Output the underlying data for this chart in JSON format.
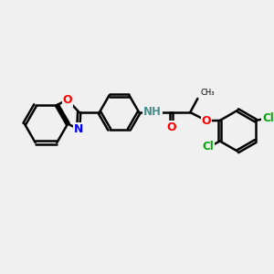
{
  "bg_color": "#f0f0f0",
  "bond_color": "#000000",
  "bond_width": 1.8,
  "atom_colors": {
    "O": "#ff0000",
    "N": "#0000ff",
    "Cl": "#00aa00",
    "H": "#4a8f8f",
    "C": "#000000"
  },
  "font_size_atom": 9
}
